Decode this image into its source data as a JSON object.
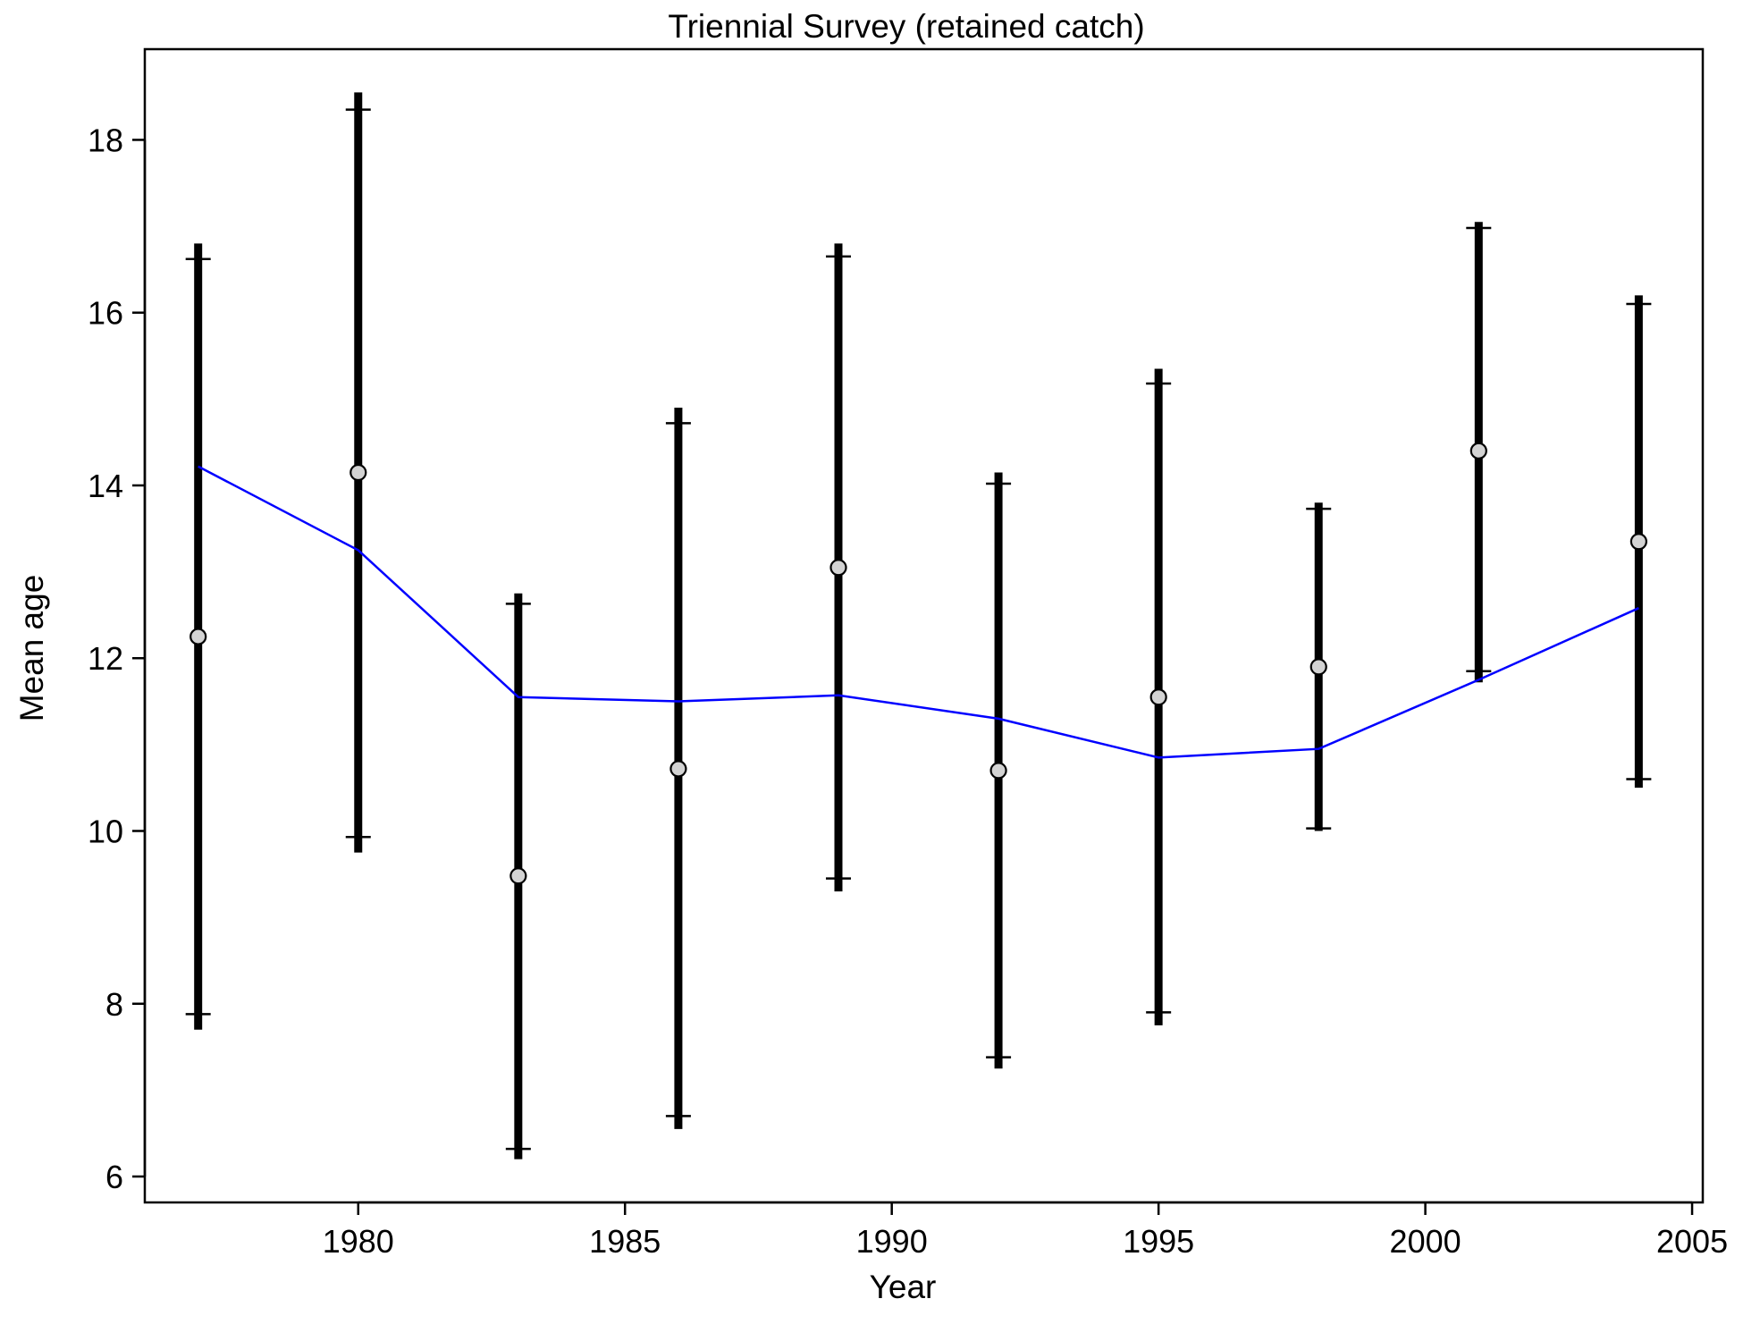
{
  "chart_data": {
    "type": "scatter",
    "title": "Triennial Survey (retained catch)",
    "xlabel": "Year",
    "ylabel": "Mean age",
    "xlim": [
      1976,
      2005.2
    ],
    "ylim": [
      5.7,
      19.05
    ],
    "x_ticks": [
      1980,
      1985,
      1990,
      1995,
      2000,
      2005
    ],
    "y_ticks": [
      6,
      8,
      10,
      12,
      14,
      16,
      18
    ],
    "grid": false,
    "legend": "none",
    "colors": {
      "fit_line": "#0000ff",
      "observed_fill": "#d3d3d3",
      "bars": "#000000"
    },
    "series": [
      {
        "x": [
          1977,
          1980,
          1983,
          1986,
          1989,
          1992,
          1995,
          1998,
          2001,
          2004
        ],
        "observed": [
          12.25,
          14.15,
          9.48,
          10.72,
          13.05,
          10.7,
          11.55,
          11.9,
          14.4,
          13.35
        ],
        "ci_outer_low": [
          7.7,
          9.75,
          6.2,
          6.55,
          9.3,
          7.25,
          7.75,
          10.0,
          11.72,
          10.5
        ],
        "ci_outer_high": [
          16.8,
          18.55,
          12.75,
          14.9,
          16.8,
          14.15,
          15.35,
          13.8,
          17.05,
          16.2
        ],
        "ci_inner_low": [
          7.88,
          9.93,
          6.32,
          6.7,
          9.45,
          7.38,
          7.9,
          10.03,
          11.85,
          10.6
        ],
        "ci_inner_high": [
          16.62,
          18.35,
          12.63,
          14.72,
          16.65,
          14.02,
          15.18,
          13.73,
          16.98,
          16.1
        ],
        "expected": [
          14.22,
          13.25,
          11.55,
          11.5,
          11.57,
          11.3,
          10.85,
          10.95,
          11.75,
          12.58
        ]
      }
    ]
  }
}
